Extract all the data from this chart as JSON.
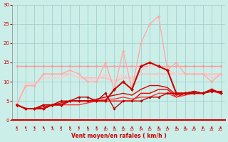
{
  "xlabel": "Vent moyen/en rafales ( km/h )",
  "bg_color": "#cceee8",
  "grid_color": "#99cccc",
  "x_values": [
    0,
    1,
    2,
    3,
    4,
    5,
    6,
    7,
    8,
    9,
    10,
    11,
    12,
    13,
    14,
    15,
    16,
    17,
    18,
    19,
    20,
    21,
    22,
    23
  ],
  "ylim": [
    0,
    30
  ],
  "yticks": [
    0,
    5,
    10,
    15,
    20,
    25,
    30
  ],
  "lines": [
    {
      "y": [
        14,
        14,
        14,
        14,
        14,
        14,
        14,
        14,
        14,
        14,
        14,
        14,
        14,
        14,
        14,
        14,
        14,
        14,
        14,
        14,
        14,
        14,
        14,
        14
      ],
      "color": "#ff9999",
      "lw": 1.0,
      "marker": "D",
      "ms": 1.8,
      "zorder": 2
    },
    {
      "y": [
        4,
        9,
        9,
        12,
        12,
        12,
        13,
        12,
        10,
        10,
        15,
        8,
        18,
        8,
        20,
        25,
        27,
        13,
        15,
        12,
        12,
        12,
        10,
        12
      ],
      "color": "#ffaaaa",
      "lw": 1.0,
      "marker": "D",
      "ms": 1.8,
      "zorder": 3
    },
    {
      "y": [
        4,
        9,
        9,
        12,
        12,
        12,
        12,
        11,
        11,
        11,
        11,
        10,
        11,
        11,
        12,
        12,
        12,
        12,
        12,
        12,
        12,
        12,
        12,
        12
      ],
      "color": "#ffbbbb",
      "lw": 1.2,
      "marker": null,
      "ms": 0,
      "zorder": 2
    },
    {
      "y": [
        4,
        9.5,
        9.5,
        11,
        11,
        11,
        12,
        11,
        10.5,
        10.5,
        12,
        10,
        12,
        10,
        13,
        14,
        14,
        13,
        12,
        12,
        12,
        12,
        11,
        12
      ],
      "color": "#ffcccc",
      "lw": 1.2,
      "marker": null,
      "ms": 0,
      "zorder": 2
    },
    {
      "y": [
        4,
        3,
        3,
        3,
        4,
        4,
        5,
        5,
        5,
        5,
        5,
        8,
        10,
        8,
        14,
        15,
        14,
        13,
        7,
        7,
        7,
        7,
        8,
        7
      ],
      "color": "#cc0000",
      "lw": 1.5,
      "marker": "D",
      "ms": 2.2,
      "zorder": 5
    },
    {
      "y": [
        4,
        3,
        3,
        3,
        4,
        4,
        5,
        5,
        5,
        5,
        5,
        5,
        5,
        5,
        7,
        7,
        8,
        8,
        6,
        7,
        7,
        7,
        8,
        7
      ],
      "color": "#ee0000",
      "lw": 1.0,
      "marker": null,
      "ms": 0,
      "zorder": 4
    },
    {
      "y": [
        4,
        3,
        3,
        3.5,
        4,
        4.5,
        5,
        5,
        5,
        5.5,
        6,
        6.5,
        7,
        6.5,
        8,
        9,
        9,
        8.5,
        6.5,
        7,
        7.5,
        7,
        7.5,
        7.5
      ],
      "color": "#dd0000",
      "lw": 1.0,
      "marker": null,
      "ms": 0,
      "zorder": 4
    },
    {
      "y": [
        4,
        3,
        3,
        4,
        4,
        4,
        4,
        4,
        4.5,
        5,
        5.5,
        5.5,
        6,
        5.5,
        6,
        6,
        7,
        7,
        6,
        6.5,
        7,
        7,
        7.5,
        7
      ],
      "color": "#ff3333",
      "lw": 1.0,
      "marker": null,
      "ms": 0,
      "zorder": 4
    },
    {
      "y": [
        4,
        3,
        3,
        4,
        4,
        5,
        5,
        6,
        6,
        5,
        7,
        3,
        5,
        5,
        5,
        6,
        6,
        7,
        7,
        7,
        7.5,
        7,
        7.5,
        7.5
      ],
      "color": "#bb0000",
      "lw": 1.0,
      "marker": "D",
      "ms": 1.8,
      "zorder": 4
    }
  ]
}
